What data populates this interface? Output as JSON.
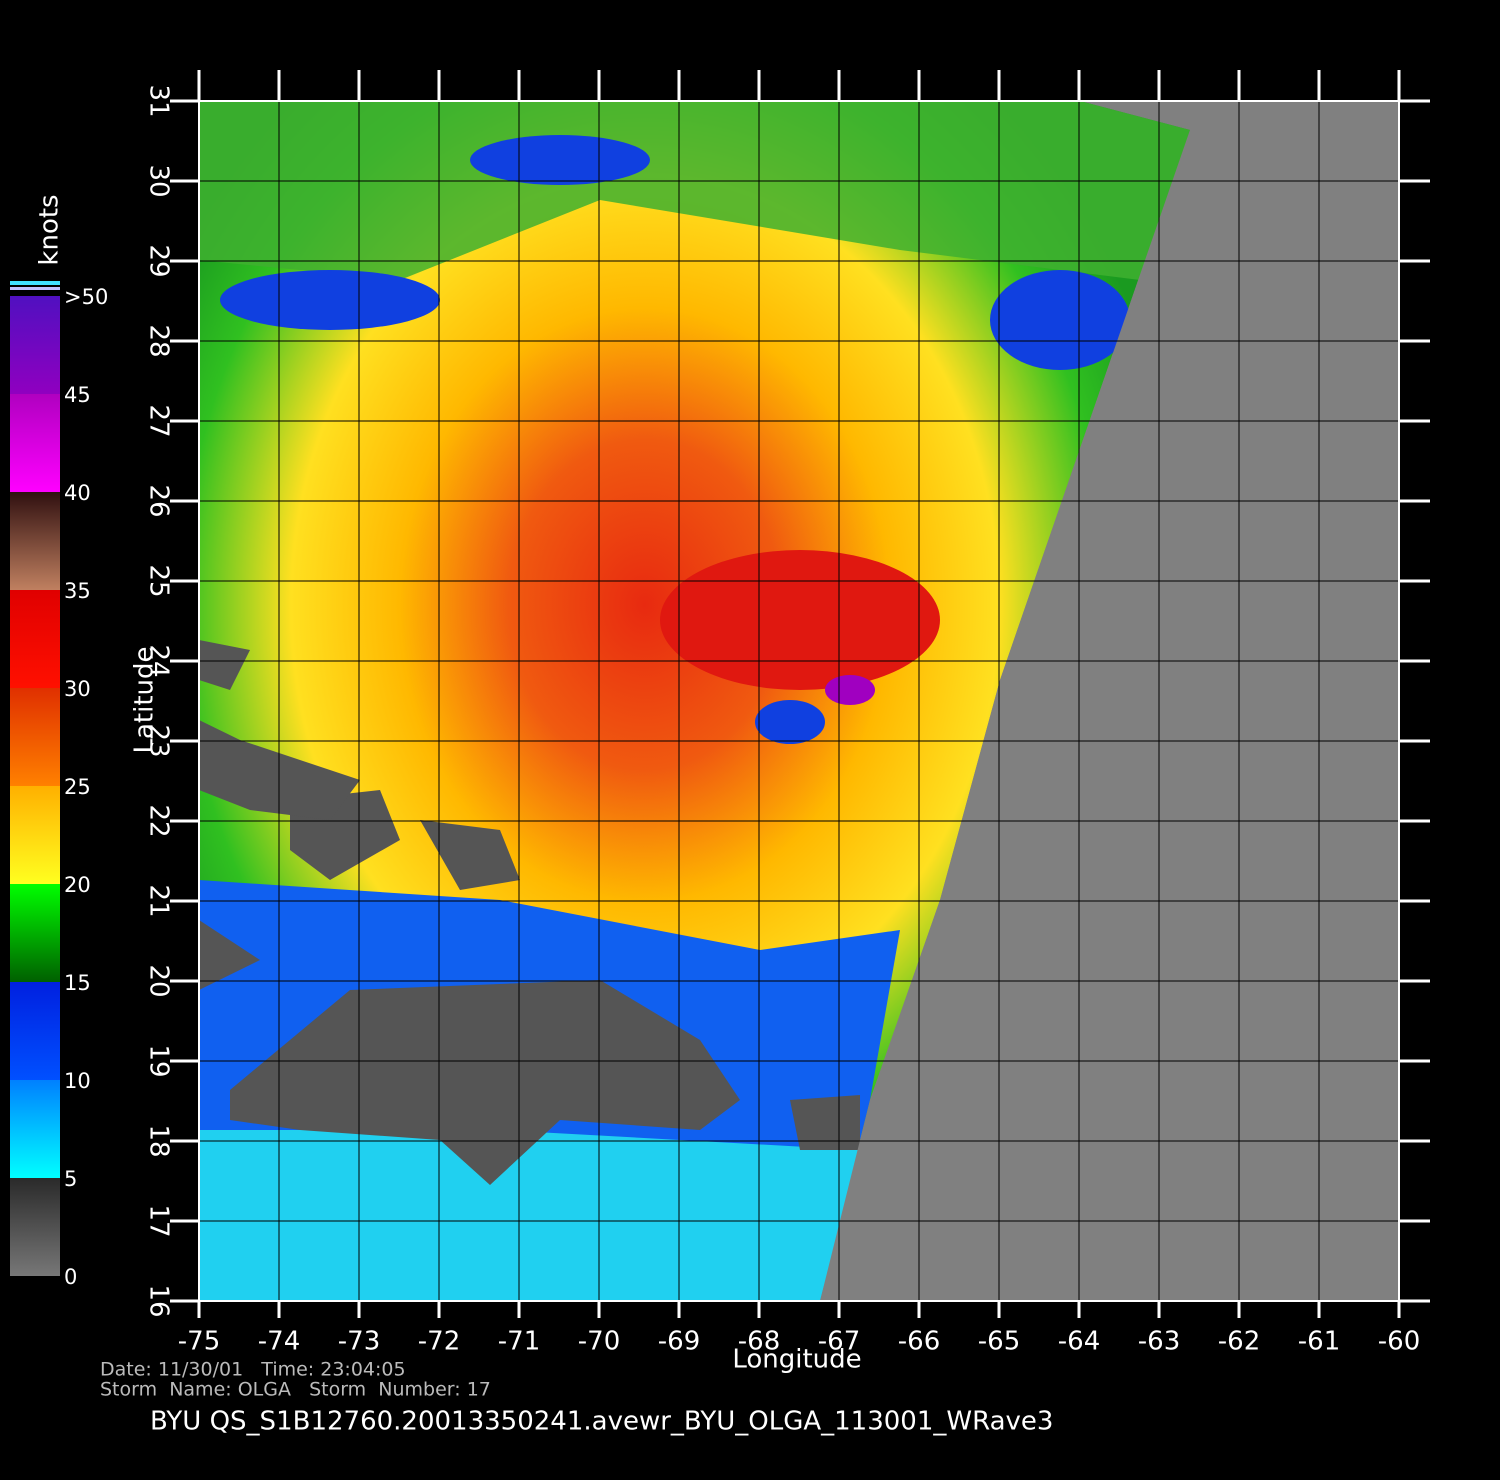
{
  "map": {
    "x_label": "Longitude",
    "y_label": "Latitude",
    "xlim": [
      -75,
      -60
    ],
    "ylim": [
      16,
      31
    ],
    "xticks": [
      -75,
      -74,
      -73,
      -72,
      -71,
      -70,
      -69,
      -68,
      -67,
      -66,
      -65,
      -64,
      -63,
      -62,
      -61,
      -60
    ],
    "yticks": [
      16,
      17,
      18,
      19,
      20,
      21,
      22,
      23,
      24,
      25,
      26,
      27,
      28,
      29,
      30,
      31
    ]
  },
  "colorbar": {
    "label": "knots",
    "lim": [
      0,
      50
    ],
    "ticks": [
      0,
      5,
      10,
      15,
      20,
      25,
      30,
      35,
      40,
      45,
      {
        "value": 50,
        "label": ">50"
      }
    ]
  },
  "footer": {
    "date_time": "Date: 11/30/01   Time: 23:04:05",
    "storm": "Storm  Name: OLGA   Storm  Number: 17",
    "file": "BYU  QS_S1B12760.20013350241.avewr_BYU_OLGA_113001_WRave3"
  }
}
